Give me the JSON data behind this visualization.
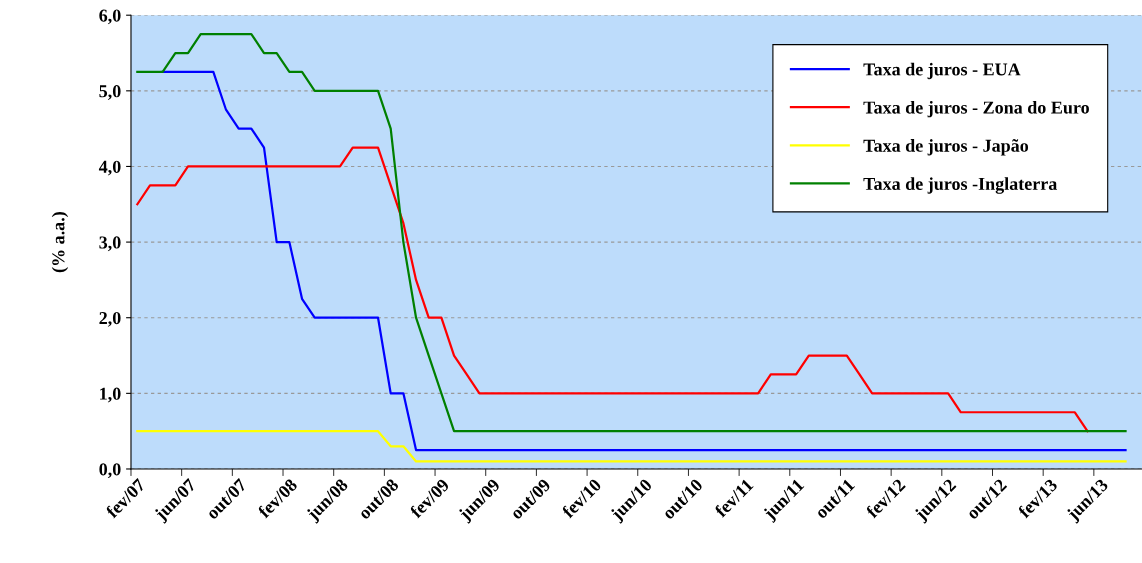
{
  "chart_data": {
    "type": "line",
    "ylabel": "(% a.a.)",
    "categories": [
      "fev/07",
      null,
      null,
      null,
      "jun/07",
      null,
      null,
      null,
      "out/07",
      null,
      null,
      null,
      "fev/08",
      null,
      null,
      null,
      "jun/08",
      null,
      null,
      null,
      "out/08",
      null,
      null,
      null,
      "fev/09",
      null,
      null,
      null,
      "jun/09",
      null,
      null,
      null,
      "out/09",
      null,
      null,
      null,
      "fev/10",
      null,
      null,
      null,
      "jun/10",
      null,
      null,
      null,
      "out/10",
      null,
      null,
      null,
      "fev/11",
      null,
      null,
      null,
      "jun/11",
      null,
      null,
      null,
      "out/11",
      null,
      null,
      null,
      "fev/12",
      null,
      null,
      null,
      "jun/12",
      null,
      null,
      null,
      "out/12",
      null,
      null,
      null,
      "fev/13",
      null,
      null,
      null,
      "jun/13",
      null,
      null
    ],
    "series": [
      {
        "name": "Taxa de juros - EUA",
        "color": "#0000ff",
        "values": [
          null,
          null,
          5.25,
          5.25,
          5.25,
          5.25,
          5.25,
          4.75,
          4.5,
          4.5,
          4.25,
          3.0,
          3.0,
          2.25,
          2.0,
          2.0,
          2.0,
          2.0,
          2.0,
          2.0,
          1.0,
          1.0,
          0.25,
          0.25,
          0.25,
          0.25,
          0.25,
          0.25,
          0.25,
          0.25,
          0.25,
          0.25,
          0.25,
          0.25,
          0.25,
          0.25,
          0.25,
          0.25,
          0.25,
          0.25,
          0.25,
          0.25,
          0.25,
          0.25,
          0.25,
          0.25,
          0.25,
          0.25,
          0.25,
          0.25,
          0.25,
          0.25,
          0.25,
          0.25,
          0.25,
          0.25,
          0.25,
          0.25,
          0.25,
          0.25,
          0.25,
          0.25,
          0.25,
          0.25,
          0.25,
          0.25,
          0.25,
          0.25,
          0.25,
          0.25,
          0.25,
          0.25,
          0.25,
          0.25,
          0.25,
          0.25,
          0.25,
          0.25,
          0.25
        ]
      },
      {
        "name": "Taxa de juros - Zona do Euro",
        "color": "#ff0000",
        "values": [
          3.5,
          3.75,
          3.75,
          3.75,
          4.0,
          4.0,
          4.0,
          4.0,
          4.0,
          4.0,
          4.0,
          4.0,
          4.0,
          4.0,
          4.0,
          4.0,
          4.0,
          4.25,
          4.25,
          4.25,
          3.75,
          3.25,
          2.5,
          2.0,
          2.0,
          1.5,
          1.25,
          1.0,
          1.0,
          1.0,
          1.0,
          1.0,
          1.0,
          1.0,
          1.0,
          1.0,
          1.0,
          1.0,
          1.0,
          1.0,
          1.0,
          1.0,
          1.0,
          1.0,
          1.0,
          1.0,
          1.0,
          1.0,
          1.0,
          1.0,
          1.25,
          1.25,
          1.25,
          1.5,
          1.5,
          1.5,
          1.5,
          1.25,
          1.0,
          1.0,
          1.0,
          1.0,
          1.0,
          1.0,
          1.0,
          0.75,
          0.75,
          0.75,
          0.75,
          0.75,
          0.75,
          0.75,
          0.75,
          0.75,
          0.75,
          0.5,
          null,
          null,
          null
        ]
      },
      {
        "name": "Taxa de juros - Japão",
        "color": "#ffff00",
        "values": [
          0.5,
          0.5,
          0.5,
          0.5,
          0.5,
          0.5,
          0.5,
          0.5,
          0.5,
          0.5,
          0.5,
          0.5,
          0.5,
          0.5,
          0.5,
          0.5,
          0.5,
          0.5,
          0.5,
          0.5,
          0.3,
          0.3,
          0.1,
          0.1,
          0.1,
          0.1,
          0.1,
          0.1,
          0.1,
          0.1,
          0.1,
          0.1,
          0.1,
          0.1,
          0.1,
          0.1,
          0.1,
          0.1,
          0.1,
          0.1,
          0.1,
          0.1,
          0.1,
          0.1,
          0.1,
          0.1,
          0.1,
          0.1,
          0.1,
          0.1,
          0.1,
          0.1,
          0.1,
          0.1,
          0.1,
          0.1,
          0.1,
          0.1,
          0.1,
          0.1,
          0.1,
          0.1,
          0.1,
          0.1,
          0.1,
          0.1,
          0.1,
          0.1,
          0.1,
          0.1,
          0.1,
          0.1,
          0.1,
          0.1,
          0.1,
          0.1,
          0.1,
          0.1,
          0.1
        ]
      },
      {
        "name": "Taxa de juros -Inglaterra",
        "color": "#008000",
        "values": [
          5.25,
          5.25,
          5.25,
          5.5,
          5.5,
          5.75,
          5.75,
          5.75,
          5.75,
          5.75,
          5.5,
          5.5,
          5.25,
          5.25,
          5.0,
          5.0,
          5.0,
          5.0,
          5.0,
          5.0,
          4.5,
          3.0,
          2.0,
          1.5,
          1.0,
          0.5,
          0.5,
          0.5,
          0.5,
          0.5,
          0.5,
          0.5,
          0.5,
          0.5,
          0.5,
          0.5,
          0.5,
          0.5,
          0.5,
          0.5,
          0.5,
          0.5,
          0.5,
          0.5,
          0.5,
          0.5,
          0.5,
          0.5,
          0.5,
          0.5,
          0.5,
          0.5,
          0.5,
          0.5,
          0.5,
          0.5,
          0.5,
          0.5,
          0.5,
          0.5,
          0.5,
          0.5,
          0.5,
          0.5,
          0.5,
          0.5,
          0.5,
          0.5,
          0.5,
          0.5,
          0.5,
          0.5,
          0.5,
          0.5,
          0.5,
          0.5,
          0.5,
          0.5,
          0.5
        ]
      }
    ],
    "ylim": [
      0,
      6
    ],
    "yticks": [
      {
        "value": 0,
        "label": "0,0"
      },
      {
        "value": 1,
        "label": "1,0"
      },
      {
        "value": 2,
        "label": "2,0"
      },
      {
        "value": 3,
        "label": "3,0"
      },
      {
        "value": 4,
        "label": "4,0"
      },
      {
        "value": 5,
        "label": "5,0"
      },
      {
        "value": 6,
        "label": "6,0"
      }
    ],
    "grid": "y",
    "legend": "top right",
    "marker": "none",
    "line_style": "solid"
  }
}
